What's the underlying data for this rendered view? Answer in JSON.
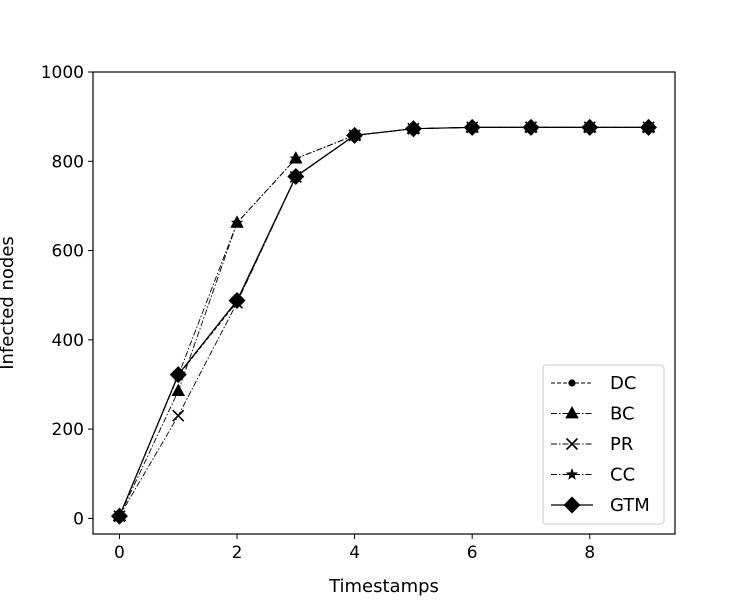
{
  "chart_data": {
    "type": "line",
    "xlabel": "Timestamps",
    "ylabel": "Infected nodes",
    "xlim": [
      -0.45,
      9.45
    ],
    "ylim": [
      -35,
      1000
    ],
    "xticks": [
      0,
      2,
      4,
      6,
      8
    ],
    "yticks": [
      0,
      200,
      400,
      600,
      800,
      1000
    ],
    "grid": false,
    "legend_position": "lower-right",
    "x": [
      0,
      1,
      2,
      3,
      4,
      5,
      6,
      7,
      8,
      9
    ],
    "series": [
      {
        "name": "DC",
        "marker": "dot",
        "dash": "dashed",
        "values": [
          5,
          320,
          485,
          765,
          858,
          873,
          876,
          876,
          876,
          876
        ]
      },
      {
        "name": "BC",
        "marker": "triangle",
        "dash": "dashdot",
        "values": [
          5,
          285,
          662,
          806,
          858,
          873,
          876,
          876,
          876,
          876
        ]
      },
      {
        "name": "PR",
        "marker": "x",
        "dash": "dashdot",
        "values": [
          5,
          230,
          483,
          765,
          858,
          873,
          876,
          876,
          876,
          876
        ]
      },
      {
        "name": "CC",
        "marker": "star",
        "dash": "dashdot",
        "values": [
          5,
          320,
          662,
          806,
          858,
          873,
          876,
          876,
          876,
          876
        ]
      },
      {
        "name": "GTM",
        "marker": "diamond",
        "dash": "solid",
        "values": [
          5,
          322,
          488,
          766,
          858,
          873,
          876,
          876,
          876,
          876
        ]
      }
    ]
  }
}
